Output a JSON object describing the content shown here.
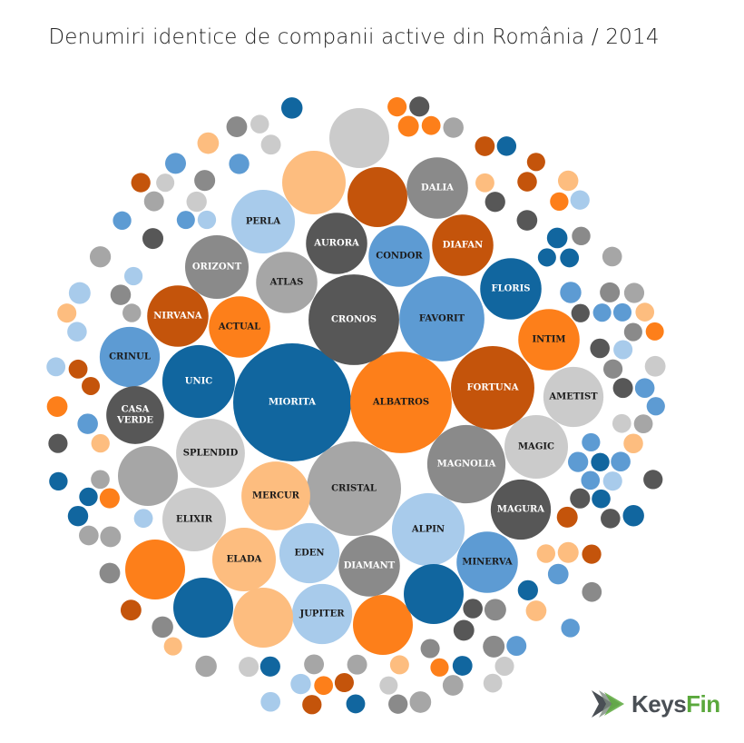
{
  "chart_data": {
    "type": "bubble",
    "title": "Denumiri identice de companii active din România / 2014",
    "palette": {
      "dark_blue": "#11669f",
      "mid_blue": "#5d9bd3",
      "light_blue": "#a8cbeb",
      "orange": "#fd7f1a",
      "dark_orange": "#c4540b",
      "light_orange": "#fdbd7f",
      "dark_gray": "#575757",
      "gray": "#8a8a8a",
      "mid_gray": "#a6a6a6",
      "light_gray": "#cbcbcb"
    },
    "bubbles": [
      {
        "label": "MIORITA",
        "value": 100,
        "color": "dark_blue"
      },
      {
        "label": "ALBATROS",
        "value": 74,
        "color": "orange"
      },
      {
        "label": "CRISTAL",
        "value": 64,
        "color": "mid_gray"
      },
      {
        "label": "CRONOS",
        "value": 59,
        "color": "dark_gray"
      },
      {
        "label": "FAVORIT",
        "value": 52,
        "color": "mid_blue"
      },
      {
        "label": "FORTUNA",
        "value": 50,
        "color": "dark_orange"
      },
      {
        "label": "MAGNOLIA",
        "value": 44,
        "color": "gray"
      },
      {
        "label": "ALPIN",
        "value": 38,
        "color": "light_blue"
      },
      {
        "label": "UNIC",
        "value": 38,
        "color": "dark_blue"
      },
      {
        "label": "SPLENDID",
        "value": 34,
        "color": "light_gray"
      },
      {
        "label": "MERCUR",
        "value": 34,
        "color": "light_orange"
      },
      {
        "label": "MAGIC",
        "value": 29,
        "color": "light_gray"
      },
      {
        "label": "ELADA",
        "value": 29,
        "color": "light_orange"
      },
      {
        "label": "ELIXIR",
        "value": 29,
        "color": "light_gray"
      },
      {
        "label": "ORIZONT",
        "value": 29,
        "color": "gray"
      },
      {
        "label": "PERLA",
        "value": 29,
        "color": "light_blue"
      },
      {
        "label": "MINERVA",
        "value": 27,
        "color": "mid_blue"
      },
      {
        "label": "DIAMANT",
        "value": 27,
        "color": "gray"
      },
      {
        "label": "NIRVANA",
        "value": 27,
        "color": "dark_orange"
      },
      {
        "label": "ACTUAL",
        "value": 27,
        "color": "orange"
      },
      {
        "label": "ATLAS",
        "value": 27,
        "color": "mid_gray"
      },
      {
        "label": "AURORA",
        "value": 27,
        "color": "dark_gray"
      },
      {
        "label": "CONDOR",
        "value": 27,
        "color": "mid_blue"
      },
      {
        "label": "DIAFAN",
        "value": 27,
        "color": "dark_orange"
      },
      {
        "label": "DALIA",
        "value": 27,
        "color": "gray"
      },
      {
        "label": "FLORIS",
        "value": 27,
        "color": "dark_blue"
      },
      {
        "label": "INTIM",
        "value": 27,
        "color": "orange"
      },
      {
        "label": "AMETIST",
        "value": 26,
        "color": "light_gray"
      },
      {
        "label": "MAGURA",
        "value": 26,
        "color": "dark_gray"
      },
      {
        "label": "EDEN",
        "value": 26,
        "color": "light_blue"
      },
      {
        "label": "JUPITER",
        "value": 26,
        "color": "light_blue"
      },
      {
        "label": "CRINUL",
        "value": 26,
        "color": "mid_blue"
      },
      {
        "label": "CASA VERDE",
        "value": 24,
        "color": "dark_gray"
      }
    ]
  },
  "logo": {
    "part1": "Keys",
    "part2": "Fin"
  }
}
